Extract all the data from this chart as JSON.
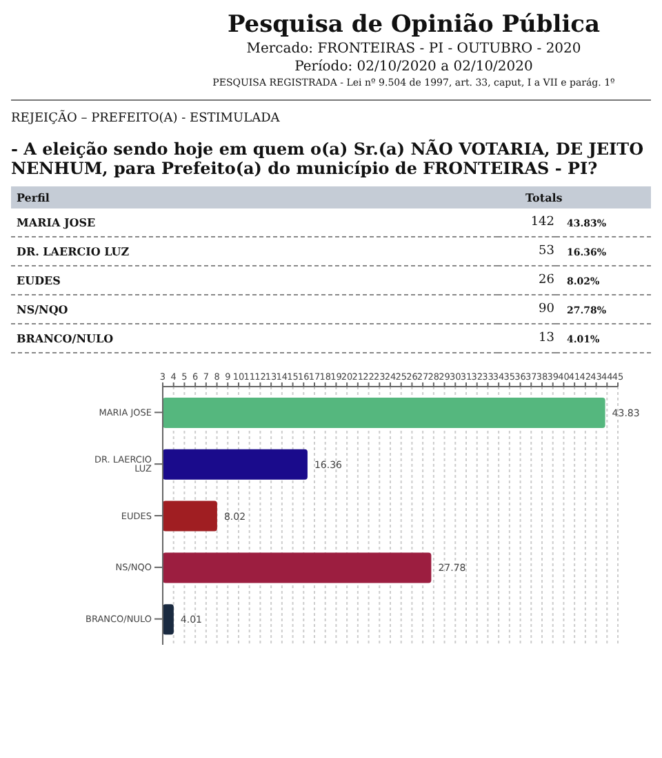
{
  "chart_data": {
    "type": "bar",
    "orientation": "horizontal",
    "title": "Pesquisa de Opinião Pública",
    "subtitle": "Mercado: FRONTEIRAS - PI - OUTUBRO - 2020\nPeríodo: 02/10/2020 a 02/10/2020\nPESQUISA REGISTRADA - Lei nº 9.504 de 1997, art. 33, caput, I a VII e parág. 1º",
    "annotations": [
      "REJEIÇÃO – PREFEITO(A) - ESTIMULADA",
      "- A eleição sendo hoje em quem o(a) Sr.(a) NÃO VOTARIA, DE JEITO NENHUM, para Prefeito(a) do município de FRONTEIRAS - PI?",
      "Perfil",
      "Totals",
      "142",
      "43.83%",
      "53",
      "16.36%",
      "26",
      "8.02%",
      "90",
      "27.78%",
      "13",
      "4.01%"
    ],
    "categories": [
      "MARIA JOSE",
      "DR. LAERCIO LUZ",
      "EUDES",
      "NS/NQO",
      "BRANCO/NULO"
    ],
    "values": [
      43.83,
      16.36,
      8.02,
      27.78,
      4.01
    ],
    "colors": [
      "#55b77e",
      "#1a0b8c",
      "#a01e22",
      "#9c1e40",
      "#1a2a40"
    ],
    "xlim": [
      3,
      45
    ],
    "xticks": [
      3,
      4,
      5,
      6,
      7,
      8,
      9,
      10,
      11,
      12,
      13,
      14,
      15,
      16,
      17,
      18,
      19,
      20,
      21,
      22,
      23,
      24,
      25,
      26,
      27,
      28,
      29,
      30,
      31,
      32,
      33,
      34,
      35,
      36,
      37,
      38,
      39,
      40,
      41,
      42,
      43,
      44,
      45
    ],
    "grid": "x",
    "data_labels": true
  }
}
